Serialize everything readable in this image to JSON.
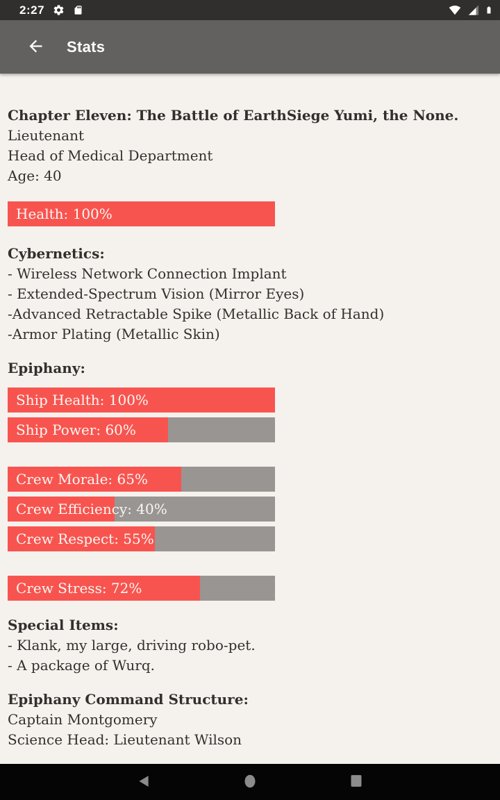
{
  "status_bar": {
    "time": "2:27",
    "icons_left": [
      "gear-icon",
      "sd-card-icon"
    ],
    "icons_right": [
      "wifi-icon",
      "cell-signal-icon",
      "battery-icon"
    ]
  },
  "app_bar": {
    "title": "Stats",
    "back_icon": "arrow-left-icon"
  },
  "content": {
    "chapter_heading": "Chapter Eleven: The Battle of EarthSiege Yumi, the None.",
    "character_lines": [
      "Lieutenant",
      "Head of Medical Department",
      "Age: 40"
    ],
    "health_bars": [
      {
        "label": "Health: 100%",
        "value": 100
      }
    ],
    "cybernetics_heading": "Cybernetics:",
    "cybernetics_items": [
      "- Wireless Network Connection Implant",
      "- Extended-Spectrum Vision (Mirror Eyes)",
      "-Advanced Retractable Spike (Metallic Back of Hand)",
      "-Armor Plating (Metallic Skin)"
    ],
    "epiphany_heading": "Epiphany:",
    "ship_bars": [
      {
        "label": "Ship Health: 100%",
        "value": 100
      },
      {
        "label": "Ship Power: 60%",
        "value": 60
      }
    ],
    "crew_bars": [
      {
        "label": "Crew Morale: 65%",
        "value": 65
      },
      {
        "label": "Crew Efficiency: 40%",
        "value": 40
      },
      {
        "label": "Crew Respect: 55%",
        "value": 55
      }
    ],
    "stress_bars": [
      {
        "label": "Crew Stress: 72%",
        "value": 72
      }
    ],
    "special_items_heading": "Special Items:",
    "special_items": [
      "- Klank, my large, driving robo-pet.",
      "- A package of Wurq."
    ],
    "command_heading": "Epiphany Command Structure:",
    "command_lines": [
      "Captain Montgomery",
      "Science Head: Lieutenant Wilson"
    ]
  },
  "nav_bar": {
    "icons": [
      "android-back-icon",
      "android-home-icon",
      "android-recents-icon"
    ]
  },
  "colors": {
    "bar_fill": "#f8544f",
    "bar_track": "#999593",
    "app_bar_bg": "#636060",
    "status_bar_bg": "#312f2e",
    "content_bg": "#f5f2ee",
    "nav_bar_bg": "#050505"
  }
}
